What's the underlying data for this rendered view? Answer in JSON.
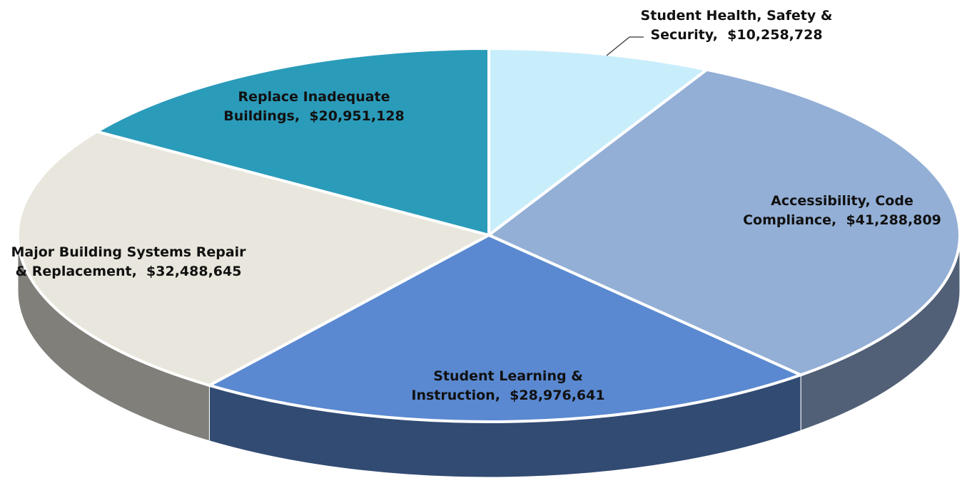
{
  "chart_data": {
    "type": "pie",
    "categories": [
      "Student Health, Safety & Security,",
      "Accessibility, Code Compliance,",
      "Student Learning & Instruction,",
      "Major Building Systems Repair & Replacement,",
      "Replace Inadequate Buildings,"
    ],
    "values": [
      10258728,
      41288809,
      28976641,
      32488645,
      20951128
    ],
    "value_labels": [
      "$10,258,728",
      "$41,288,809",
      "$28,976,641",
      "$32,488,645",
      "$20,951,128"
    ],
    "colors": [
      "#c9eefb",
      "#93afd6",
      "#5a89d1",
      "#e9e7dd",
      "#2b9bba"
    ]
  }
}
